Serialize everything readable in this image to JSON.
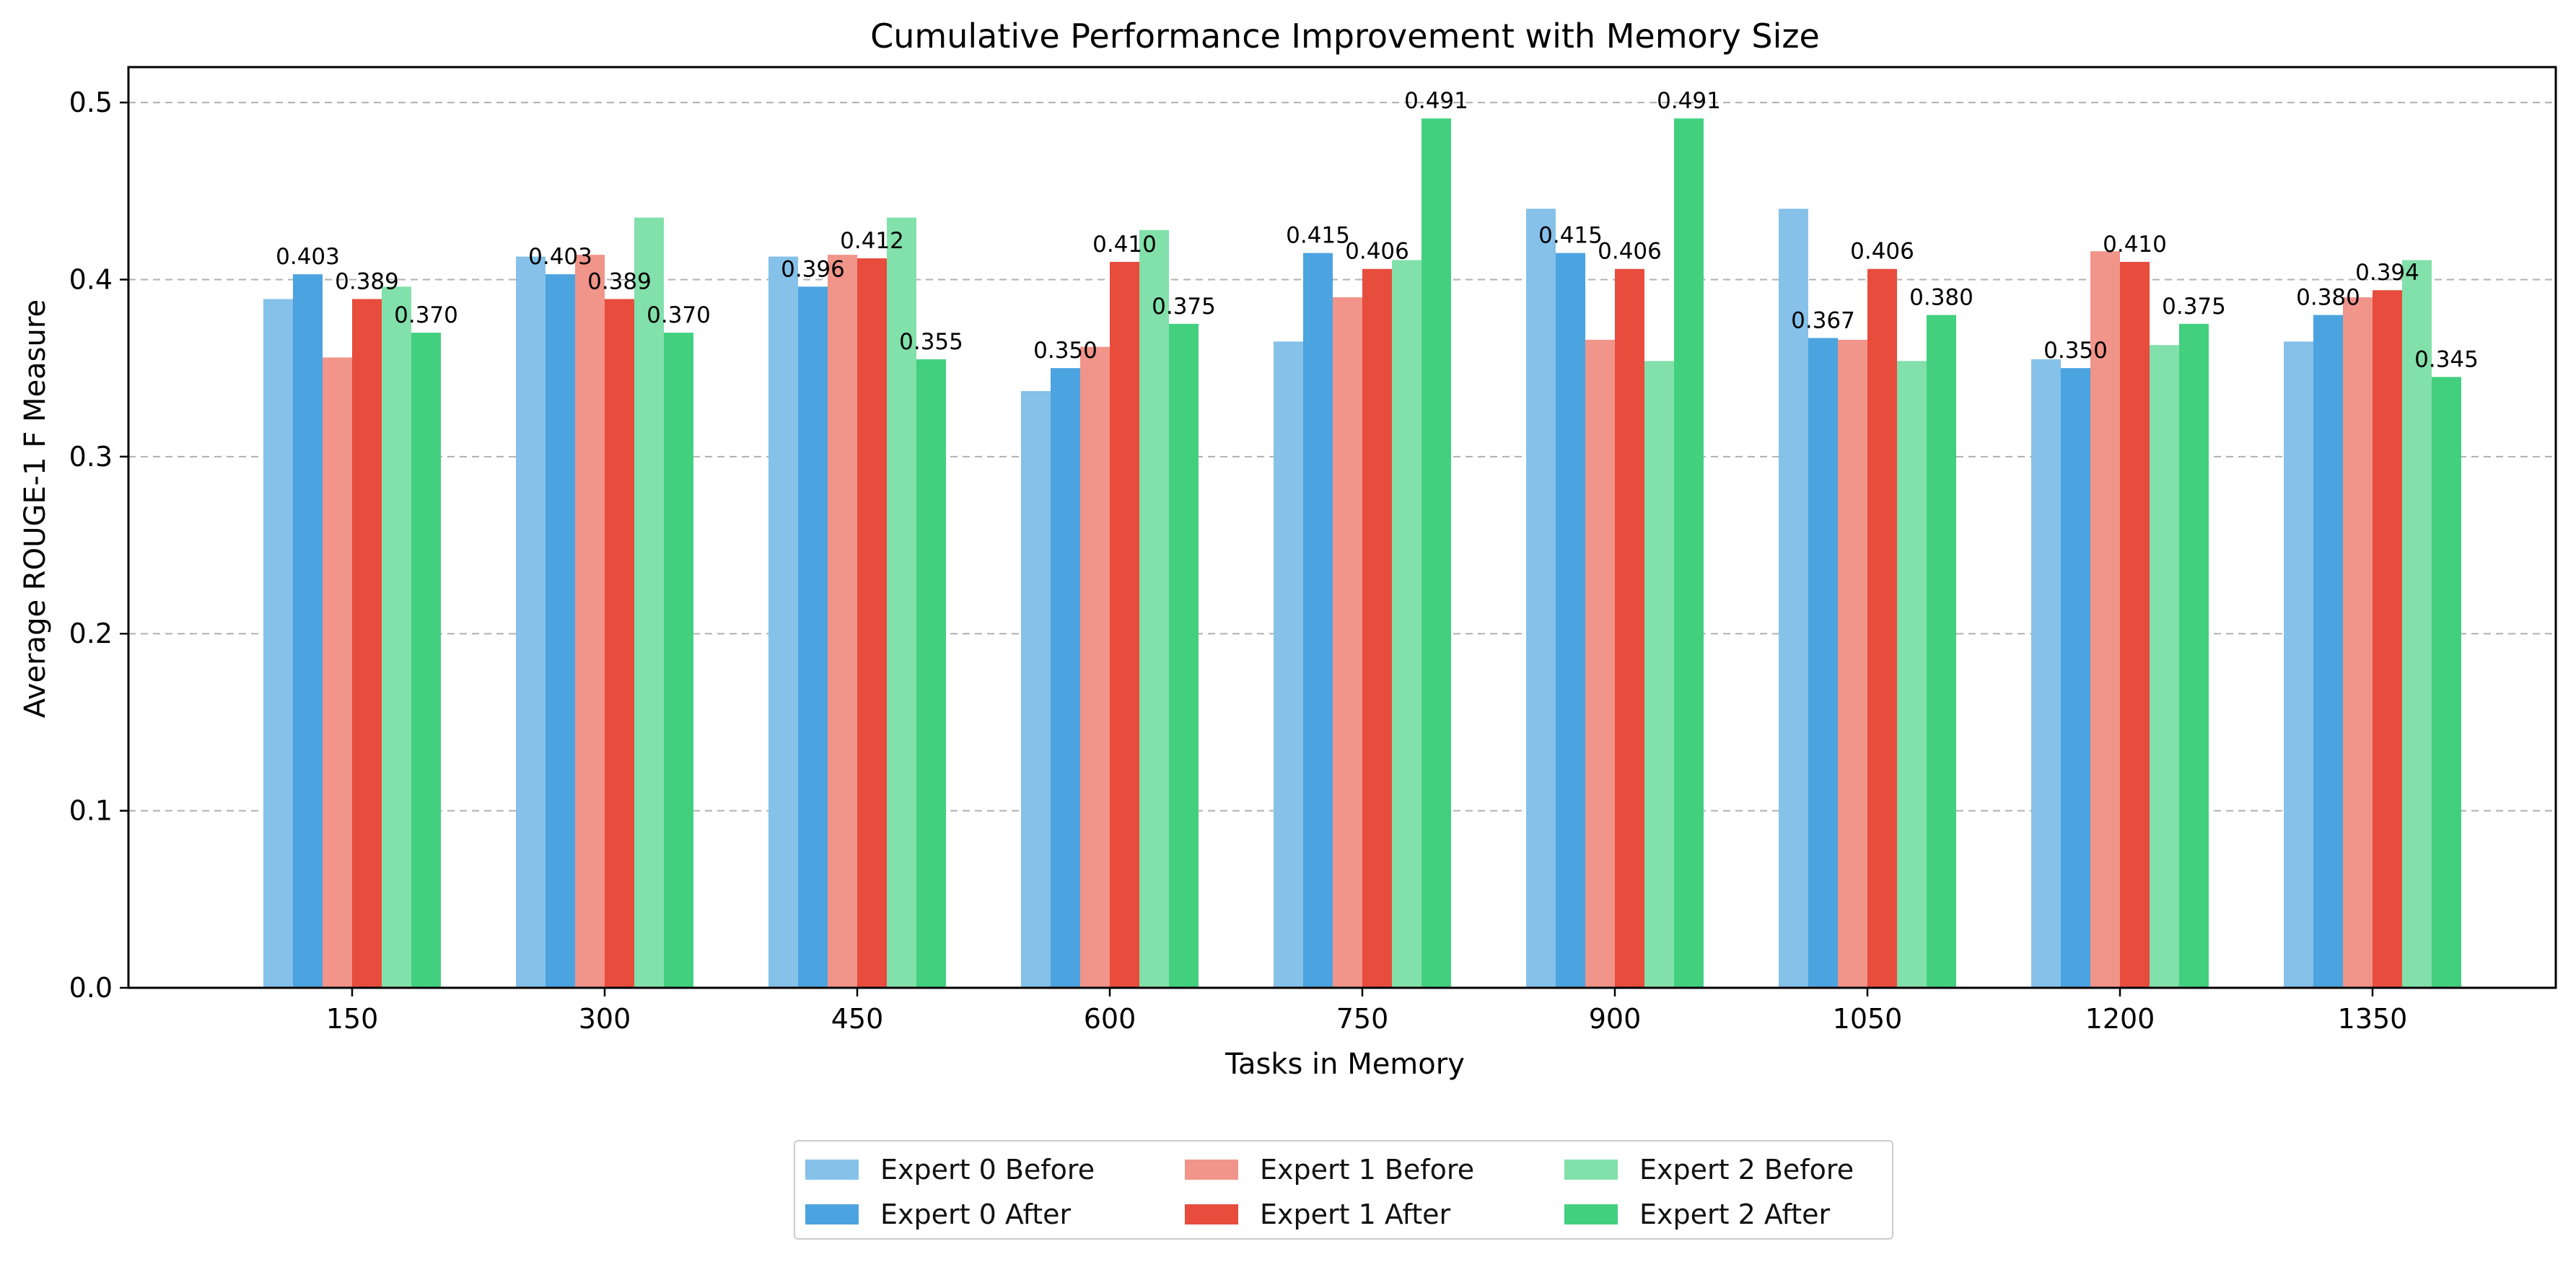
{
  "chart_data": {
    "type": "bar",
    "title": "Cumulative Performance Improvement with Memory Size",
    "xlabel": "Tasks in Memory",
    "ylabel": "Average ROUGE-1 F Measure",
    "ylim": [
      0,
      0.52
    ],
    "yticks": [
      "0.0",
      "0.1",
      "0.2",
      "0.3",
      "0.4",
      "0.5"
    ],
    "grid": "y-dashed",
    "legend_position": "bottom-center",
    "categories": [
      "150",
      "300",
      "450",
      "600",
      "750",
      "900",
      "1050",
      "1200",
      "1350"
    ],
    "series": [
      {
        "name": "Expert 0 Before",
        "color": "#85C1E9",
        "values": [
          0.389,
          0.413,
          0.413,
          0.337,
          0.365,
          0.44,
          0.44,
          0.355,
          0.365
        ]
      },
      {
        "name": "Expert 0 After",
        "color": "#4BA3E0",
        "values": [
          0.403,
          0.403,
          0.396,
          0.35,
          0.415,
          0.415,
          0.367,
          0.35,
          0.38
        ],
        "labels": [
          "0.403",
          "0.403",
          "0.396",
          "0.350",
          "0.415",
          "0.415",
          "0.367",
          "0.350",
          "0.380"
        ]
      },
      {
        "name": "Expert 1 Before",
        "color": "#F1948A",
        "values": [
          0.356,
          0.414,
          0.414,
          0.362,
          0.39,
          0.366,
          0.366,
          0.416,
          0.39
        ]
      },
      {
        "name": "Expert 1 After",
        "color": "#E74C3C",
        "values": [
          0.389,
          0.389,
          0.412,
          0.41,
          0.406,
          0.406,
          0.406,
          0.41,
          0.394
        ],
        "labels": [
          "0.389",
          "0.389",
          "0.412",
          "0.410",
          "0.406",
          "0.406",
          "0.406",
          "0.410",
          "0.394"
        ]
      },
      {
        "name": "Expert 2 Before",
        "color": "#82E0AA",
        "values": [
          0.396,
          0.435,
          0.435,
          0.428,
          0.411,
          0.354,
          0.354,
          0.363,
          0.411
        ]
      },
      {
        "name": "Expert 2 After",
        "color": "#42D07F",
        "values": [
          0.37,
          0.37,
          0.355,
          0.375,
          0.491,
          0.491,
          0.38,
          0.375,
          0.345
        ],
        "labels": [
          "0.370",
          "0.370",
          "0.355",
          "0.375",
          "0.491",
          "0.491",
          "0.380",
          "0.375",
          "0.345"
        ]
      }
    ]
  }
}
